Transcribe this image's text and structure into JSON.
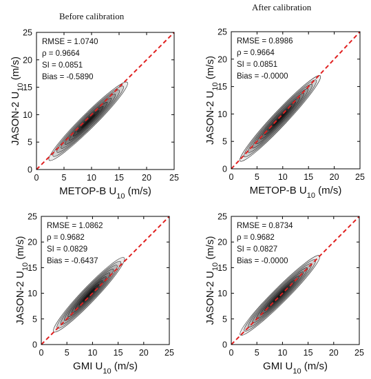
{
  "headers": {
    "left": "Before calibration",
    "right": "After calibration"
  },
  "chart_data": [
    {
      "type": "contour-scatter",
      "xlabel": "METOP-B U10 (m/s)",
      "xlabel_main": "METOP-B U",
      "xlabel_sub": "10",
      "xlabel_unit": " (m/s)",
      "ylabel": "JASON-2 U10 (m/s)",
      "ylabel_main": "JASON-2 U",
      "ylabel_sub": "10",
      "ylabel_unit": " (m/s)",
      "xlim": [
        0,
        25
      ],
      "ylim": [
        0,
        25
      ],
      "xticks": [
        "0",
        "5",
        "10",
        "15",
        "20",
        "25"
      ],
      "yticks": [
        "0",
        "5",
        "10",
        "15",
        "20",
        "25"
      ],
      "reference_line": {
        "type": "y=x",
        "color": "#e02020",
        "style": "dashed"
      },
      "stats": [
        "RMSE = 1.0740",
        "ρ = 0.9664",
        "SI = 0.0851",
        "Bias = -0.5890"
      ],
      "density": {
        "center": [
          9.4,
          8.8
        ],
        "x_range": [
          3.3,
          17.5
        ],
        "y_range": [
          3.3,
          17.5
        ],
        "slope": 1.0,
        "levels": 9
      }
    },
    {
      "type": "contour-scatter",
      "xlabel": "METOP-B U10 (m/s)",
      "xlabel_main": "METOP-B U",
      "xlabel_sub": "10",
      "xlabel_unit": " (m/s)",
      "ylabel": "JASON-2 U10 (m/s)",
      "ylabel_main": "JASON-2 U",
      "ylabel_sub": "10",
      "ylabel_unit": " (m/s)",
      "xlim": [
        0,
        25
      ],
      "ylim": [
        0,
        25
      ],
      "xticks": [
        "0",
        "5",
        "10",
        "15",
        "20",
        "25"
      ],
      "yticks": [
        "0",
        "5",
        "10",
        "15",
        "20",
        "25"
      ],
      "reference_line": {
        "type": "y=x",
        "color": "#e02020",
        "style": "dashed"
      },
      "stats": [
        "RMSE = 0.8986",
        "ρ = 0.9664",
        "SI = 0.0851",
        "Bias = -0.0000"
      ],
      "density": {
        "center": [
          9.5,
          9.2
        ],
        "x_range": [
          3.3,
          18.2
        ],
        "y_range": [
          3.3,
          19.5
        ],
        "slope": 1.0,
        "levels": 9
      }
    },
    {
      "type": "contour-scatter",
      "xlabel": "GMI U10 (m/s)",
      "xlabel_main": "GMI U",
      "xlabel_sub": "10",
      "xlabel_unit": " (m/s)",
      "ylabel": "JASON-2 U10 (m/s)",
      "ylabel_main": "JASON-2 U",
      "ylabel_sub": "10",
      "ylabel_unit": " (m/s)",
      "xlim": [
        0,
        25
      ],
      "ylim": [
        0,
        25
      ],
      "xticks": [
        "0",
        "5",
        "10",
        "15",
        "20",
        "25"
      ],
      "yticks": [
        "0",
        "5",
        "10",
        "15",
        "20",
        "25"
      ],
      "reference_line": {
        "type": "y=x",
        "color": "#e02020",
        "style": "dashed"
      },
      "stats": [
        "RMSE = 1.0862",
        "ρ = 0.9682",
        "SI = 0.0829",
        "Bias = -0.6437"
      ],
      "density": {
        "center": [
          9.3,
          9.7
        ],
        "x_range": [
          3.3,
          16.8
        ],
        "y_range": [
          3.3,
          18.0
        ],
        "slope": 1.05,
        "levels": 9
      }
    },
    {
      "type": "contour-scatter",
      "xlabel": "GMI U10 (m/s)",
      "xlabel_main": "GMI U",
      "xlabel_sub": "10",
      "xlabel_unit": " (m/s)",
      "ylabel": "JASON-2 U10 (m/s)",
      "ylabel_main": "JASON-2 U",
      "ylabel_sub": "10",
      "ylabel_unit": " (m/s)",
      "xlim": [
        0,
        25
      ],
      "ylim": [
        0,
        25
      ],
      "xticks": [
        "0",
        "5",
        "10",
        "15",
        "20",
        "25"
      ],
      "yticks": [
        "0",
        "5",
        "10",
        "15",
        "20",
        "25"
      ],
      "reference_line": {
        "type": "y=x",
        "color": "#e02020",
        "style": "dashed"
      },
      "stats": [
        "RMSE = 0.8734",
        "ρ = 0.9682",
        "SI = 0.0827",
        "Bias = -0.0000"
      ],
      "density": {
        "center": [
          9.5,
          9.6
        ],
        "x_range": [
          3.3,
          18.5
        ],
        "y_range": [
          3.3,
          19.0
        ],
        "slope": 1.0,
        "levels": 9
      }
    }
  ]
}
